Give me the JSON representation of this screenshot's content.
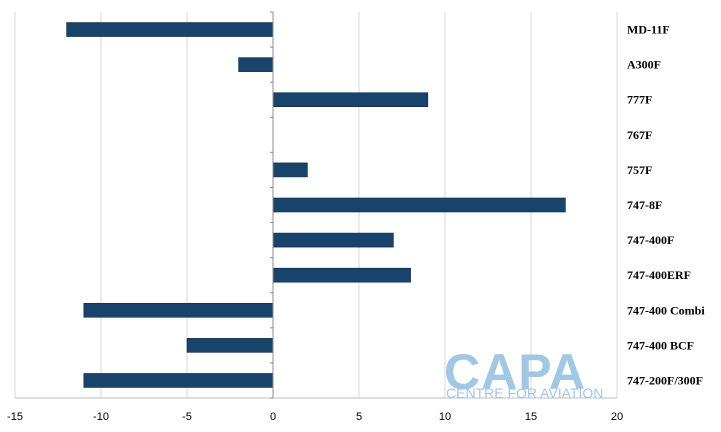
{
  "chart_data": {
    "type": "bar",
    "orientation": "horizontal",
    "title": "",
    "xlabel": "",
    "ylabel": "",
    "categories": [
      "MD-11F",
      "A300F",
      "777F",
      "767F",
      "757F",
      "747-8F",
      "747-400F",
      "747-400ERF",
      "747-400 Combi",
      "747-400 BCF",
      "747-200F/300F"
    ],
    "values": [
      -12,
      -2,
      9,
      0,
      2,
      17,
      7,
      8,
      -11,
      -5,
      -11
    ],
    "xlim": [
      -15,
      20
    ],
    "xticks": [
      -15,
      -10,
      -5,
      0,
      5,
      10,
      15,
      20
    ],
    "grid": "vertical",
    "legend": "none",
    "bar_color": "#18436b"
  },
  "watermark": {
    "main": "CAPA",
    "sub": "CENTRE FOR AVIATION"
  }
}
